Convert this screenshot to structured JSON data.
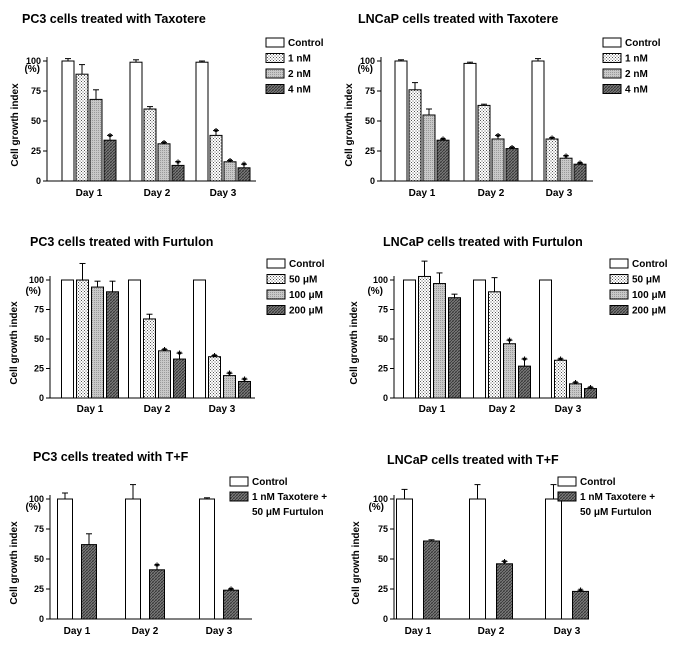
{
  "chart_data": [
    {
      "type": "bar",
      "title": "PC3 cells treated with Taxotere",
      "ylabel": "Cell growth index",
      "ylabel_unit": "(%)",
      "categories": [
        "Day 1",
        "Day 2",
        "Day 3"
      ],
      "ylim": [
        0,
        100
      ],
      "yticks": [
        "0",
        "25",
        "50",
        "75",
        "100"
      ],
      "legend_position": "right",
      "series": [
        {
          "name": "Control",
          "pattern": "white",
          "values": [
            100,
            99,
            99
          ],
          "errors": [
            2,
            2,
            1
          ],
          "stars": [
            false,
            false,
            false
          ]
        },
        {
          "name": "1 nM",
          "pattern": "dots",
          "values": [
            89,
            60,
            38
          ],
          "errors": [
            8,
            2,
            4
          ],
          "stars": [
            false,
            false,
            true
          ]
        },
        {
          "name": "2 nM",
          "pattern": "gray",
          "values": [
            68,
            31,
            16
          ],
          "errors": [
            8,
            1,
            1
          ],
          "stars": [
            false,
            true,
            true
          ]
        },
        {
          "name": "4 nM",
          "pattern": "hatch",
          "values": [
            34,
            13,
            11
          ],
          "errors": [
            4,
            3,
            3
          ],
          "stars": [
            true,
            true,
            true
          ]
        }
      ],
      "star_label": "*"
    },
    {
      "type": "bar",
      "title": "LNCaP cells treated with Taxotere",
      "ylabel": "Cell growth index",
      "ylabel_unit": "(%)",
      "categories": [
        "Day 1",
        "Day 2",
        "Day 3"
      ],
      "ylim": [
        0,
        100
      ],
      "yticks": [
        "0",
        "25",
        "50",
        "75",
        "100"
      ],
      "legend_position": "right",
      "series": [
        {
          "name": "Control",
          "pattern": "white",
          "values": [
            100,
            98,
            100
          ],
          "errors": [
            1,
            1,
            2
          ],
          "stars": [
            false,
            false,
            false
          ]
        },
        {
          "name": "1 nM",
          "pattern": "dots",
          "values": [
            76,
            63,
            35
          ],
          "errors": [
            6,
            1,
            1
          ],
          "stars": [
            false,
            false,
            true
          ]
        },
        {
          "name": "2 nM",
          "pattern": "gray",
          "values": [
            55,
            35,
            19
          ],
          "errors": [
            5,
            3,
            2
          ],
          "stars": [
            false,
            true,
            true
          ]
        },
        {
          "name": "4 nM",
          "pattern": "hatch",
          "values": [
            34,
            27,
            14
          ],
          "errors": [
            1,
            1,
            1
          ],
          "stars": [
            true,
            true,
            true
          ]
        }
      ],
      "star_label": "*"
    },
    {
      "type": "bar",
      "title": "PC3 cells treated with Furtulon",
      "ylabel": "Cell growth index",
      "ylabel_unit": "(%)",
      "categories": [
        "Day 1",
        "Day 2",
        "Day 3"
      ],
      "ylim": [
        0,
        100
      ],
      "yticks": [
        "0",
        "25",
        "50",
        "75",
        "100"
      ],
      "legend_position": "right",
      "series": [
        {
          "name": "Control",
          "pattern": "white",
          "values": [
            100,
            100,
            100
          ],
          "errors": [
            0,
            0,
            0
          ],
          "stars": [
            false,
            false,
            false
          ]
        },
        {
          "name": "50 μM",
          "pattern": "dots",
          "values": [
            100,
            67,
            35
          ],
          "errors": [
            14,
            4,
            1
          ],
          "stars": [
            false,
            false,
            true
          ]
        },
        {
          "name": "100 μM",
          "pattern": "gray",
          "values": [
            94,
            40,
            19
          ],
          "errors": [
            5,
            1,
            2
          ],
          "stars": [
            false,
            true,
            true
          ]
        },
        {
          "name": "200 μM",
          "pattern": "hatch",
          "values": [
            90,
            33,
            14
          ],
          "errors": [
            9,
            5,
            2
          ],
          "stars": [
            false,
            true,
            true
          ]
        }
      ],
      "star_label": "*"
    },
    {
      "type": "bar",
      "title": "LNCaP cells treated with Furtulon",
      "ylabel": "Cell growth index",
      "ylabel_unit": "(%)",
      "categories": [
        "Day 1",
        "Day 2",
        "Day 3"
      ],
      "ylim": [
        0,
        100
      ],
      "yticks": [
        "0",
        "25",
        "50",
        "75",
        "100"
      ],
      "legend_position": "right",
      "series": [
        {
          "name": "Control",
          "pattern": "white",
          "values": [
            100,
            100,
            100
          ],
          "errors": [
            0,
            0,
            0
          ],
          "stars": [
            false,
            false,
            false
          ]
        },
        {
          "name": "50 μM",
          "pattern": "dots",
          "values": [
            103,
            90,
            32
          ],
          "errors": [
            13,
            12,
            1
          ],
          "stars": [
            false,
            false,
            true
          ]
        },
        {
          "name": "100 μM",
          "pattern": "gray",
          "values": [
            97,
            46,
            12
          ],
          "errors": [
            9,
            3,
            1
          ],
          "stars": [
            false,
            true,
            true
          ]
        },
        {
          "name": "200 μM",
          "pattern": "hatch",
          "values": [
            85,
            27,
            8
          ],
          "errors": [
            3,
            6,
            1
          ],
          "stars": [
            false,
            true,
            true
          ]
        }
      ],
      "star_label": "*"
    },
    {
      "type": "bar",
      "title": "PC3 cells treated with T+F",
      "ylabel": "Cell growth index",
      "ylabel_unit": "(%)",
      "categories": [
        "Day 1",
        "Day 2",
        "Day 3"
      ],
      "ylim": [
        0,
        100
      ],
      "yticks": [
        "0",
        "25",
        "50",
        "75",
        "100"
      ],
      "legend_position": "right",
      "series": [
        {
          "name": "Control",
          "pattern": "white",
          "values": [
            100,
            100,
            100
          ],
          "errors": [
            5,
            12,
            1
          ],
          "stars": [
            false,
            false,
            false
          ]
        },
        {
          "name": "1 nM Taxotere + 50 μM Furtulon",
          "legend_lines": [
            "1 nM Taxotere +",
            "50 μM Furtulon"
          ],
          "pattern": "hatch",
          "values": [
            62,
            41,
            24
          ],
          "errors": [
            9,
            4,
            1
          ],
          "stars": [
            false,
            true,
            true
          ]
        }
      ],
      "star_label": "*"
    },
    {
      "type": "bar",
      "title": "LNCaP cells treated with T+F",
      "ylabel": "Cell growth index",
      "ylabel_unit": "(%)",
      "categories": [
        "Day 1",
        "Day 2",
        "Day 3"
      ],
      "ylim": [
        0,
        100
      ],
      "yticks": [
        "0",
        "25",
        "50",
        "75",
        "100"
      ],
      "legend_position": "right",
      "series": [
        {
          "name": "Control",
          "pattern": "white",
          "values": [
            100,
            100,
            100
          ],
          "errors": [
            8,
            12,
            12
          ],
          "stars": [
            false,
            false,
            false
          ]
        },
        {
          "name": "1 nM Taxotere + 50 μM Furtulon",
          "legend_lines": [
            "1 nM Taxotere +",
            "50 μM Furtulon"
          ],
          "pattern": "hatch",
          "values": [
            65,
            46,
            23
          ],
          "errors": [
            1,
            2,
            1
          ],
          "stars": [
            false,
            true,
            true
          ]
        }
      ],
      "star_label": "*"
    }
  ]
}
